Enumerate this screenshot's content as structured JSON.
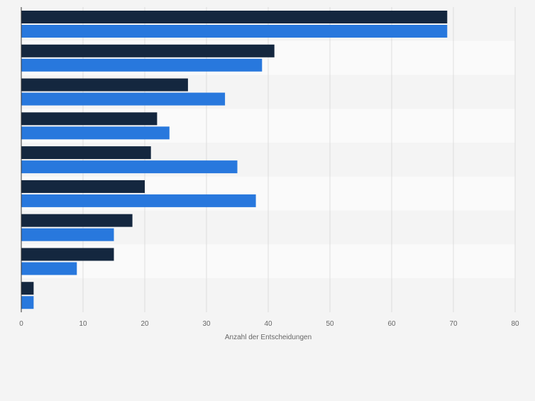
{
  "chart_data": {
    "type": "bar",
    "orientation": "horizontal",
    "categories": [
      "",
      "",
      "",
      "",
      "",
      "",
      "",
      "",
      ""
    ],
    "series": [
      {
        "values": [
          69,
          41,
          27,
          22,
          21,
          20,
          18,
          15,
          2
        ],
        "color": "#14273f"
      },
      {
        "values": [
          69,
          39,
          33,
          24,
          35,
          38,
          15,
          9,
          2
        ],
        "color": "#2878dd"
      }
    ],
    "xlabel": "Anzahl der Entscheidungen",
    "ylabel": "",
    "xlim": [
      0,
      80
    ],
    "xticks": [
      0,
      10,
      20,
      30,
      40,
      50,
      60,
      70,
      80
    ],
    "grid": true,
    "legend": "none",
    "band_colors": [
      "#f4f4f4",
      "#fafafa"
    ],
    "gridline_color": "#dddddd",
    "axis_color": "#333333"
  }
}
